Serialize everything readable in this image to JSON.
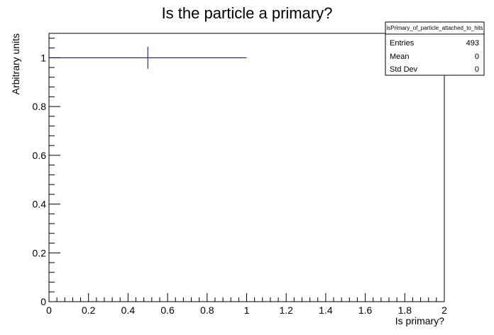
{
  "chart_data": {
    "type": "histogram",
    "title": "Is the particle a primary?",
    "xlabel": "Is primary?",
    "ylabel": "Arbitrary units",
    "xlim": [
      0,
      2
    ],
    "ylim": [
      0,
      1.1
    ],
    "x_ticks": [
      0,
      0.2,
      0.4,
      0.6,
      0.8,
      1,
      1.2,
      1.4,
      1.6,
      1.8,
      2
    ],
    "x_tick_labels": [
      "0",
      "0.2",
      "0.4",
      "0.6",
      "0.8",
      "1",
      "1.2",
      "1.4",
      "1.6",
      "1.8",
      "2"
    ],
    "y_ticks": [
      0,
      0.2,
      0.4,
      0.6,
      0.8,
      1
    ],
    "y_tick_labels": [
      "0",
      "0.2",
      "0.4",
      "0.6",
      "0.8",
      "1"
    ],
    "bins": [
      {
        "x_low": 0,
        "x_high": 1,
        "x_center": 0.5,
        "value": 1,
        "error": 0.045
      }
    ],
    "grid": false,
    "legend": "none",
    "stats_box": {
      "name": "isPrimary_of_particle_attached_to_hits",
      "rows": [
        {
          "label": "Entries",
          "value": "493"
        },
        {
          "label": "Mean",
          "value": "0"
        },
        {
          "label": "Std Dev",
          "value": "0"
        }
      ],
      "position": "top-right"
    },
    "line_color": "#000080"
  }
}
